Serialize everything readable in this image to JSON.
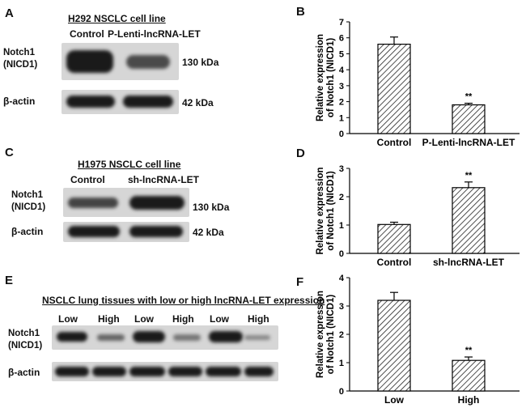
{
  "panels": {
    "A": {
      "letter": "A",
      "title": "H292 NSCLC cell line",
      "lanes": [
        "Control",
        "P-Lenti-lncRNA-LET"
      ],
      "rows": [
        {
          "name": "Notch1",
          "name2": "(NICD1)",
          "size": "130 kDa"
        },
        {
          "name": "β-actin",
          "name2": "",
          "size": "42 kDa"
        }
      ]
    },
    "C": {
      "letter": "C",
      "title": "H1975 NSCLC cell line",
      "lanes": [
        "Control",
        "sh-lncRNA-LET"
      ],
      "rows": [
        {
          "name": "Notch1",
          "name2": "(NICD1)",
          "size": "130 kDa"
        },
        {
          "name": "β-actin",
          "name2": "",
          "size": "42 kDa"
        }
      ]
    },
    "E": {
      "letter": "E",
      "title": "NSCLC lung tissues with low or high lncRNA-LET expression",
      "lanes": [
        "Low",
        "High",
        "Low",
        "High",
        "Low",
        "High"
      ],
      "rows": [
        {
          "name": "Notch1",
          "name2": "(NICD1)"
        },
        {
          "name": "β-actin",
          "name2": ""
        }
      ]
    }
  },
  "chart_data": [
    {
      "panel": "B",
      "type": "bar",
      "categories": [
        "Control",
        "P-Lenti-lncRNA-LET"
      ],
      "values": [
        5.6,
        1.8
      ],
      "errors": [
        0.45,
        0.1
      ],
      "annotations": [
        "",
        "**"
      ],
      "ylabel": "Relative expression of Notch1 (NICD1)",
      "ylim": [
        0,
        7
      ],
      "yticks": [
        0,
        1,
        2,
        3,
        4,
        5,
        6,
        7
      ]
    },
    {
      "panel": "D",
      "type": "bar",
      "categories": [
        "Control",
        "sh-lncRNA-LET"
      ],
      "values": [
        1.02,
        2.32
      ],
      "errors": [
        0.08,
        0.2
      ],
      "annotations": [
        "",
        "**"
      ],
      "ylabel": "Relative expression of Notch1 (NICD1)",
      "ylim": [
        0,
        3
      ],
      "yticks": [
        0,
        1,
        2,
        3
      ]
    },
    {
      "panel": "F",
      "type": "bar",
      "categories": [
        "Low",
        "High"
      ],
      "values": [
        3.2,
        1.08
      ],
      "errors": [
        0.28,
        0.12
      ],
      "annotations": [
        "",
        "**"
      ],
      "ylabel": "Relative expression of Notch1 (NICD1)",
      "ylim": [
        0,
        4
      ],
      "yticks": [
        0,
        1,
        2,
        3,
        4
      ]
    }
  ]
}
